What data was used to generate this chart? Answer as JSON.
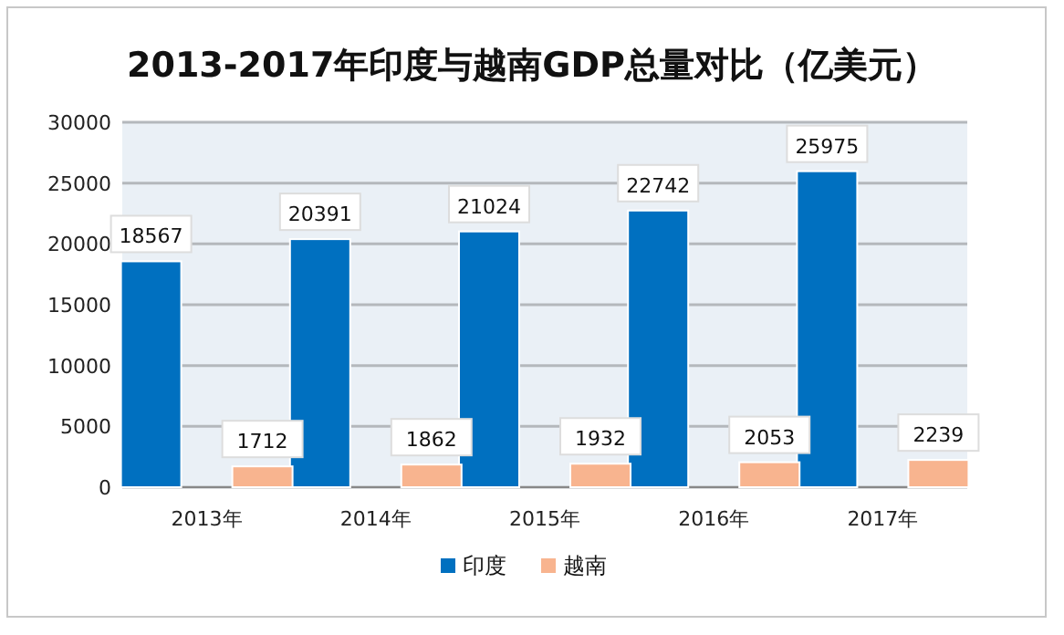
{
  "chart_data": {
    "type": "bar",
    "title": "2013-2017年印度与越南GDP总量对比（亿美元）",
    "categories": [
      "2013年",
      "2014年",
      "2015年",
      "2016年",
      "2017年"
    ],
    "series": [
      {
        "name": "印度",
        "color": "#0070c0",
        "values": [
          18567,
          20391,
          21024,
          22742,
          25975
        ]
      },
      {
        "name": "越南",
        "color": "#f8b48f",
        "values": [
          1712,
          1862,
          1932,
          2053,
          2239
        ]
      }
    ],
    "ylim": [
      0,
      30000
    ],
    "yticks": [
      0,
      5000,
      10000,
      15000,
      20000,
      25000,
      30000
    ],
    "grid": "y",
    "legend": "bottom",
    "data_labels": true
  }
}
